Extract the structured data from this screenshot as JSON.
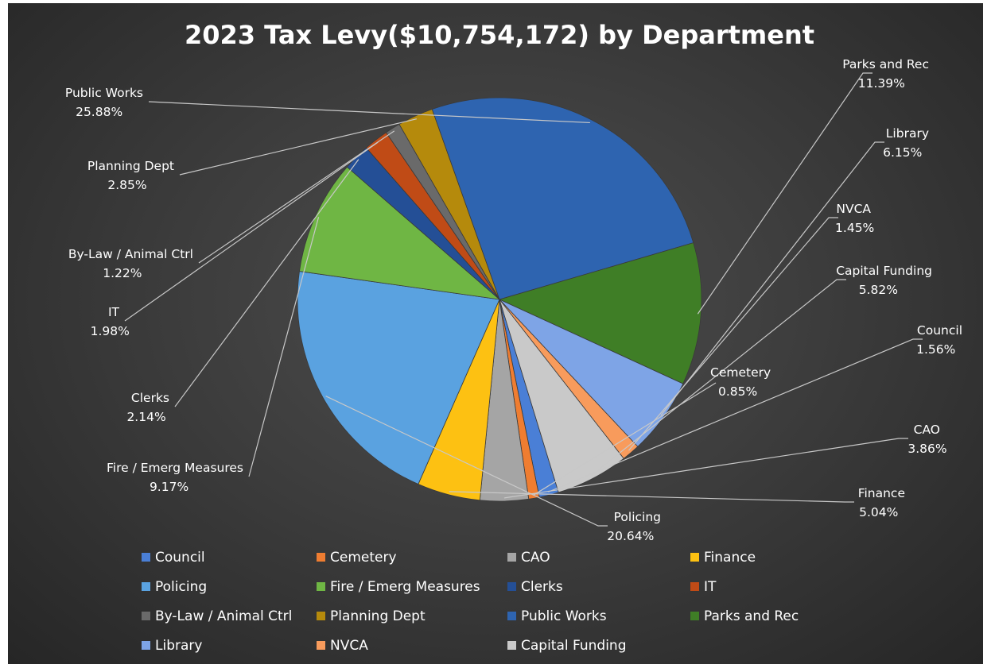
{
  "chart_data": {
    "type": "pie",
    "title": "2023 Tax Levy($10,754,172) by Department",
    "start_angle_deg": 73,
    "direction": "clockwise",
    "slices": [
      {
        "name": "Council",
        "value": 1.56,
        "label": "1.56%",
        "color": "#4a7fd6"
      },
      {
        "name": "Cemetery",
        "value": 0.85,
        "label": "0.85%",
        "color": "#ef7d31"
      },
      {
        "name": "CAO",
        "value": 3.86,
        "label": "3.86%",
        "color": "#a5a5a5"
      },
      {
        "name": "Finance",
        "value": 5.04,
        "label": "5.04%",
        "color": "#fdc112"
      },
      {
        "name": "Policing",
        "value": 20.64,
        "label": "20.64%",
        "color": "#5aa2e0"
      },
      {
        "name": "Fire / Emerg Measures",
        "value": 9.17,
        "label": "9.17%",
        "color": "#6fb644"
      },
      {
        "name": "Clerks",
        "value": 2.14,
        "label": "2.14%",
        "color": "#244f96"
      },
      {
        "name": "IT",
        "value": 1.98,
        "label": "1.98%",
        "color": "#c04b16"
      },
      {
        "name": "By-Law / Animal Ctrl",
        "value": 1.22,
        "label": "1.22%",
        "color": "#6a6a6a"
      },
      {
        "name": "Planning Dept",
        "value": 2.85,
        "label": "2.85%",
        "color": "#b58a0c"
      },
      {
        "name": "Public Works",
        "value": 25.88,
        "label": "25.88%",
        "color": "#2e64b0"
      },
      {
        "name": "Parks and Rec",
        "value": 11.39,
        "label": "11.39%",
        "color": "#3f7e26"
      },
      {
        "name": "Library",
        "value": 6.15,
        "label": "6.15%",
        "color": "#7ea4e6"
      },
      {
        "name": "NVCA",
        "value": 1.45,
        "label": "1.45%",
        "color": "#f89b5c"
      },
      {
        "name": "Capital Funding",
        "value": 5.82,
        "label": "5.82%",
        "color": "#c9c9c9"
      }
    ],
    "legend": {
      "position": "bottom",
      "columns": 4,
      "items": [
        "Council",
        "Cemetery",
        "CAO",
        "Finance",
        "Policing",
        "Fire / Emerg Measures",
        "Clerks",
        "IT",
        "By-Law / Animal Ctrl",
        "Planning Dept",
        "Public Works",
        "Parks and Rec",
        "Library",
        "NVCA",
        "Capital Funding"
      ]
    },
    "data_labels": "outside with leader lines"
  }
}
